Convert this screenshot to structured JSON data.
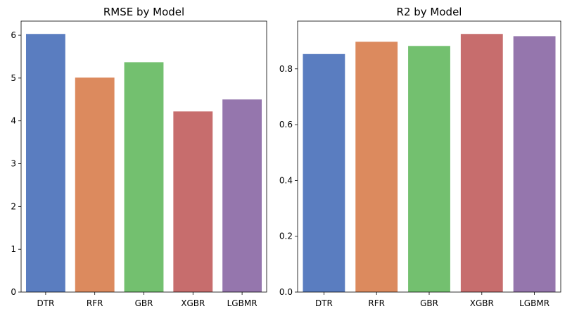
{
  "chart_data": [
    {
      "type": "bar",
      "title": "RMSE by Model",
      "xlabel": "",
      "ylabel": "",
      "categories": [
        "DTR",
        "RFR",
        "GBR",
        "XGBR",
        "LGBMR"
      ],
      "values": [
        6.03,
        5.01,
        5.37,
        4.22,
        4.5
      ],
      "colors": [
        "#5a7dc0",
        "#dc8a5e",
        "#73c06f",
        "#c76d6d",
        "#9576ad"
      ],
      "ylim": [
        0,
        6.33
      ],
      "yticks": [
        0,
        1,
        2,
        3,
        4,
        5,
        6
      ],
      "ytick_labels": [
        "0",
        "1",
        "2",
        "3",
        "4",
        "5",
        "6"
      ],
      "grid": false,
      "legend": "none"
    },
    {
      "type": "bar",
      "title": "R2 by Model",
      "xlabel": "",
      "ylabel": "",
      "categories": [
        "DTR",
        "RFR",
        "GBR",
        "XGBR",
        "LGBMR"
      ],
      "values": [
        0.853,
        0.897,
        0.882,
        0.925,
        0.917
      ],
      "colors": [
        "#5a7dc0",
        "#dc8a5e",
        "#73c06f",
        "#c76d6d",
        "#9576ad"
      ],
      "ylim": [
        0,
        0.971
      ],
      "yticks": [
        0,
        0.2,
        0.4,
        0.6,
        0.8
      ],
      "ytick_labels": [
        "0.0",
        "0.2",
        "0.4",
        "0.6",
        "0.8"
      ],
      "grid": false,
      "legend": "none"
    }
  ]
}
